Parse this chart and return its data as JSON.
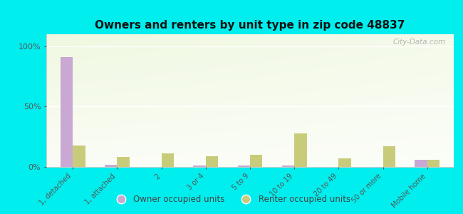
{
  "title": "Owners and renters by unit type in zip code 48837",
  "categories": [
    "1, detached",
    "1, attached",
    "2",
    "3 or 4",
    "5 to 9",
    "10 to 19",
    "20 to 49",
    "50 or more",
    "Mobile home"
  ],
  "owner_values": [
    91,
    2,
    0,
    1,
    1,
    1,
    0,
    0,
    6
  ],
  "renter_values": [
    18,
    8,
    11,
    9,
    10,
    28,
    7,
    17,
    6
  ],
  "owner_color": "#c9a8d4",
  "renter_color": "#c8cc7a",
  "background_color": "#00eeee",
  "yticks": [
    0,
    50,
    100
  ],
  "ylim": [
    0,
    110
  ],
  "bar_width": 0.28,
  "watermark": "City-Data.com",
  "legend_owner": "Owner occupied units",
  "legend_renter": "Renter occupied units"
}
